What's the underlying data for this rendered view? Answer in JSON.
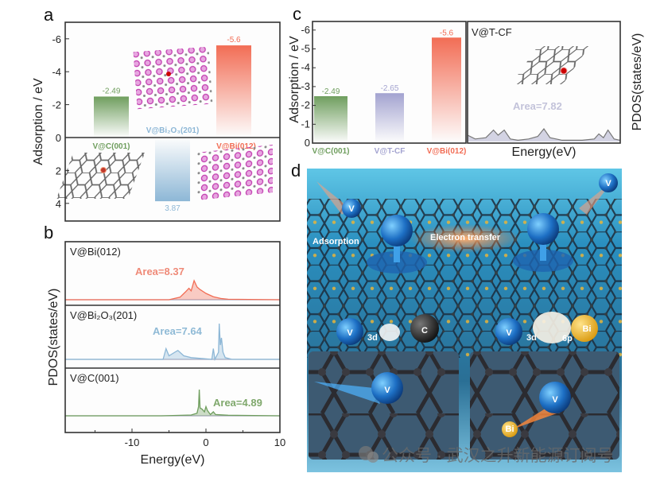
{
  "colors": {
    "green": "#6f9e5e",
    "blue": "#8db7d6",
    "red": "#f26d55",
    "purple": "#a3a3d0",
    "pink": "#c23fb0",
    "graphite": "#666666",
    "gold": "#e6b43a",
    "sea": "#2a8fbf"
  },
  "panel_labels": {
    "a": "a",
    "b": "b",
    "c": "c",
    "d": "d"
  },
  "chart_data": [
    {
      "id": "a",
      "type": "bar",
      "ylabel": "Adsorption / eV",
      "ylim": [
        4.9,
        -6.8
      ],
      "yticks": [
        "-6",
        "-4",
        "-2",
        "0",
        "2",
        "4"
      ],
      "ytick_values": [
        -6,
        -4,
        -2,
        0,
        2,
        4
      ],
      "categories": [
        "V@C(001)",
        "V@Bi₂O₃(201)",
        "V@Bi(012)"
      ],
      "values": [
        -2.49,
        3.87,
        -5.6
      ],
      "value_labels": [
        "-2.49",
        "3.87",
        "-5.6"
      ]
    },
    {
      "id": "b",
      "type": "line",
      "xlabel": "Energy(eV)",
      "ylabel": "PDOS(states/eV)",
      "xlim": [
        -19,
        10
      ],
      "xticks": [
        "-10",
        "0",
        "10"
      ],
      "xtick_values": [
        -10,
        0,
        10
      ],
      "series": [
        {
          "name": "V@Bi(012)",
          "area_label": "Area=8.37",
          "color_key": "red",
          "points": [
            [
              -19,
              0
            ],
            [
              -5,
              0
            ],
            [
              -3.5,
              0.1
            ],
            [
              -2.8,
              0.3
            ],
            [
              -2.3,
              0.45
            ],
            [
              -2,
              0.35
            ],
            [
              -1.6,
              0.75
            ],
            [
              -1.2,
              0.5
            ],
            [
              -0.8,
              0.4
            ],
            [
              0,
              0.25
            ],
            [
              1,
              0.12
            ],
            [
              2,
              0.05
            ],
            [
              3,
              0.02
            ],
            [
              10,
              0
            ]
          ]
        },
        {
          "name": "V@Bi₂O₃(201)",
          "area_label": "Area=7.64",
          "color_key": "blue",
          "points": [
            [
              -19,
              0
            ],
            [
              -5.8,
              0
            ],
            [
              -5.4,
              0.3
            ],
            [
              -5,
              0.1
            ],
            [
              -4.2,
              0.2
            ],
            [
              -3.8,
              0.25
            ],
            [
              -3,
              0.1
            ],
            [
              -2,
              0.05
            ],
            [
              0.8,
              0
            ],
            [
              1,
              0.3
            ],
            [
              1.2,
              0
            ],
            [
              1.7,
              0.2
            ],
            [
              1.8,
              1.0
            ],
            [
              1.95,
              0.4
            ],
            [
              2.1,
              0.6
            ],
            [
              2.3,
              0.2
            ],
            [
              2.6,
              0.05
            ],
            [
              3.5,
              0
            ],
            [
              10,
              0
            ]
          ]
        },
        {
          "name": "V@C(001)",
          "area_label": "Area=4.89",
          "color_key": "green",
          "points": [
            [
              -19,
              0
            ],
            [
              -6,
              0
            ],
            [
              -2,
              0.03
            ],
            [
              -1.2,
              0.1
            ],
            [
              -1,
              0.35
            ],
            [
              -0.9,
              1.0
            ],
            [
              -0.8,
              0.3
            ],
            [
              -0.5,
              0.25
            ],
            [
              -0.2,
              0.15
            ],
            [
              0,
              0.35
            ],
            [
              0.2,
              0.2
            ],
            [
              0.6,
              0.05
            ],
            [
              1,
              0.15
            ],
            [
              1.3,
              0.05
            ],
            [
              3,
              0.02
            ],
            [
              10,
              0
            ]
          ]
        }
      ]
    },
    {
      "id": "c",
      "type": "bar",
      "ylabel": "Adsorption / eV",
      "ylim": [
        0,
        -6.5
      ],
      "yticks": [
        "-6",
        "-5",
        "-4",
        "-3",
        "-2",
        "-1",
        "0"
      ],
      "ytick_values": [
        -6,
        -5,
        -4,
        -3,
        -2,
        -1,
        0
      ],
      "categories": [
        "V@C(001)",
        "V@T-CF",
        "V@Bi(012)"
      ],
      "values": [
        -2.49,
        -2.65,
        -5.6
      ],
      "value_labels": [
        "-2.49",
        "-2.65",
        "-5.6"
      ]
    },
    {
      "id": "c-pdos",
      "type": "area",
      "title": "V@T-CF",
      "xlabel": "Energy(eV)",
      "ylabel": "PDOS(states/eV)",
      "area_label": "Area=7.82",
      "points": [
        [
          0,
          0.25
        ],
        [
          0.05,
          0.1
        ],
        [
          0.12,
          0.15
        ],
        [
          0.17,
          0.45
        ],
        [
          0.2,
          0.25
        ],
        [
          0.24,
          0.45
        ],
        [
          0.28,
          0.1
        ],
        [
          0.33,
          0.05
        ],
        [
          0.4,
          0.1
        ],
        [
          0.46,
          0.2
        ],
        [
          0.5,
          0.5
        ],
        [
          0.54,
          0.15
        ],
        [
          0.62,
          0.05
        ],
        [
          0.75,
          0.05
        ],
        [
          0.83,
          0.1
        ],
        [
          0.86,
          0.3
        ],
        [
          0.89,
          0.15
        ],
        [
          0.92,
          0.45
        ],
        [
          0.96,
          0.1
        ],
        [
          1,
          0.05
        ]
      ]
    }
  ],
  "illustration": {
    "adsorption": "Adsorption",
    "electron_transfer": "Electron transfer",
    "v": "V",
    "c": "C",
    "bi": "Bi",
    "orb_3d": "3d",
    "orb_6p": "6p",
    "watermark": "公众号 · 武汉之升新能源订阅号"
  }
}
